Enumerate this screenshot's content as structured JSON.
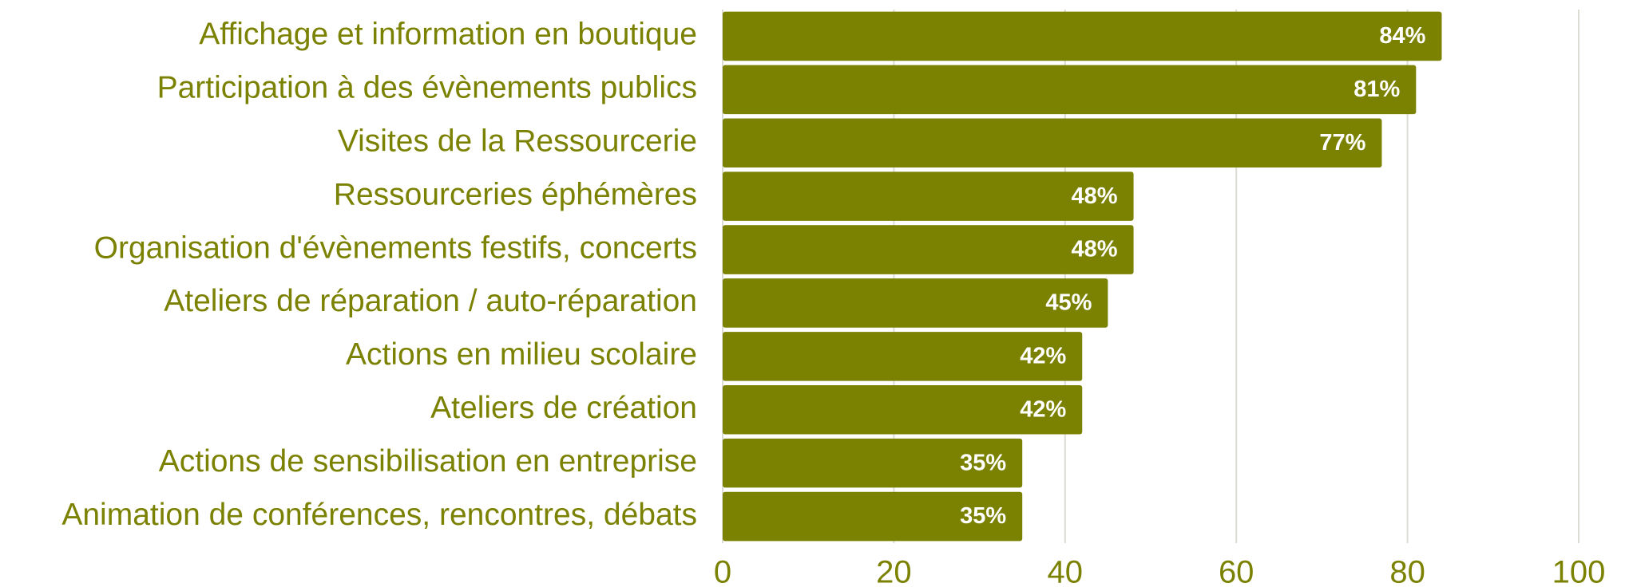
{
  "chart_data": {
    "type": "bar",
    "orientation": "horizontal",
    "categories": [
      "Affichage et information en boutique",
      "Participation à des évènements publics",
      "Visites de la Ressourcerie",
      "Ressourceries éphémères",
      "Organisation d'évènements festifs, concerts",
      "Ateliers de réparation / auto-réparation",
      "Actions en milieu scolaire",
      "Ateliers de création",
      "Actions de sensibilisation en entreprise",
      "Animation de conférences, rencontres, débats"
    ],
    "values": [
      84,
      81,
      77,
      48,
      48,
      45,
      42,
      42,
      35,
      35
    ],
    "value_labels": [
      "84%",
      "81%",
      "77%",
      "48%",
      "48%",
      "45%",
      "42%",
      "42%",
      "35%",
      "35%"
    ],
    "color": "#7b8100",
    "xlim": [
      0,
      100
    ],
    "xticks": [
      0,
      20,
      40,
      60,
      80,
      100
    ],
    "grid": true
  }
}
